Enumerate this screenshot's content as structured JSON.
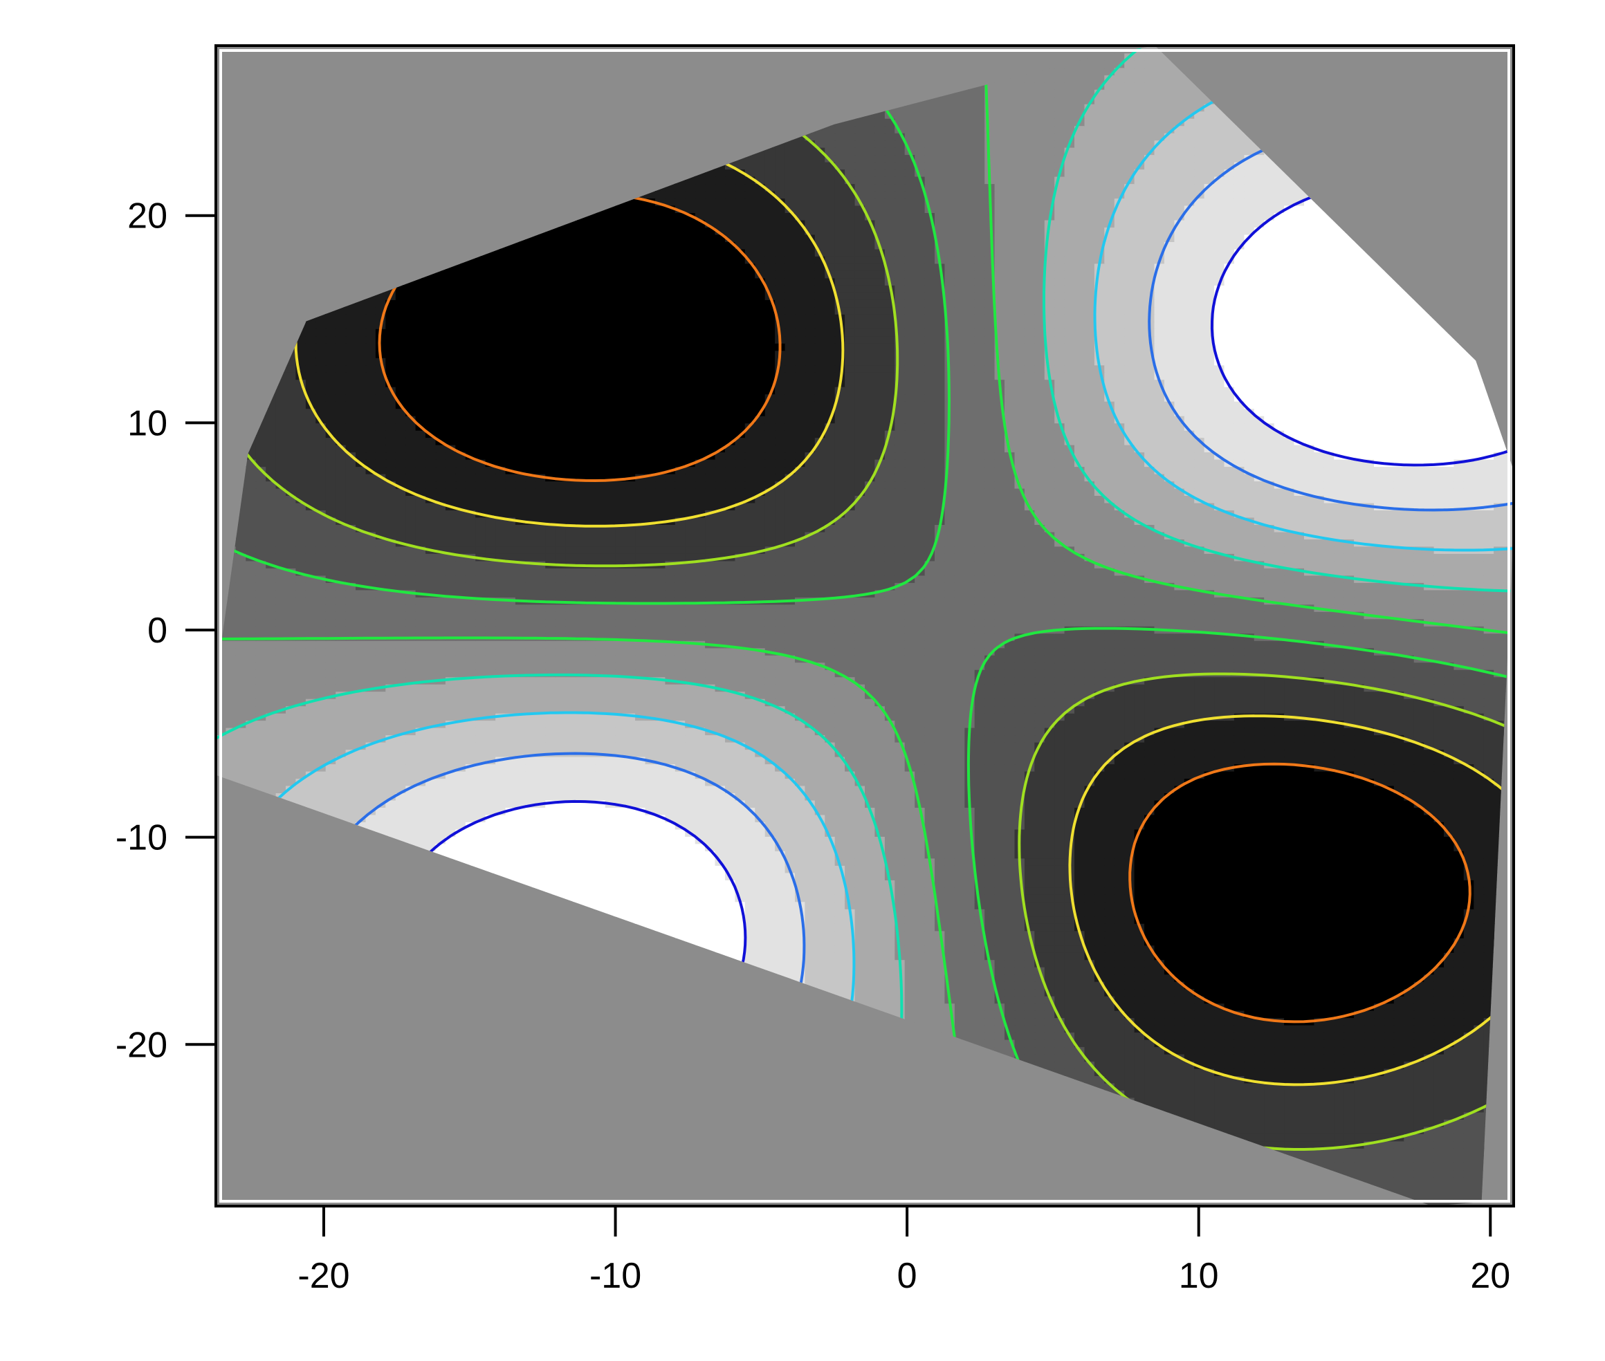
{
  "chart_data": {
    "type": "contour",
    "title": "",
    "xlabel": "",
    "ylabel": "",
    "xlim": [
      -23.7,
      20.8
    ],
    "ylim": [
      -27.8,
      28.2
    ],
    "x_ticks": [
      -20,
      -10,
      0,
      10,
      20
    ],
    "y_ticks": [
      -20,
      -10,
      0,
      10,
      20
    ],
    "x_tick_labels": [
      "-20",
      "-10",
      "0",
      "10",
      "20"
    ],
    "y_tick_labels": [
      "-20",
      "-10",
      "0",
      "10",
      "20"
    ],
    "grid": false,
    "legend": "none",
    "background_color": "#8c8c8c",
    "fill_levels": [
      "#ffffff",
      "#e2e2e2",
      "#c6c6c6",
      "#aaaaaa",
      "#8c8c8c",
      "#6e6e6e",
      "#525252",
      "#373737",
      "#1c1c1c",
      "#000000"
    ],
    "contour_colors": [
      "#1010d8",
      "#2a6ee8",
      "#22c8f0",
      "#10e0b0",
      "#20e840",
      "#a0e020",
      "#f0e030",
      "#f07818"
    ],
    "field": {
      "peaks": [
        {
          "x": -10.5,
          "y": 13.5,
          "sign": 1
        },
        {
          "x": 12.0,
          "y": -12.0,
          "sign": 1
        },
        {
          "x": 16.5,
          "y": 14.0,
          "sign": -1
        },
        {
          "x": -10.0,
          "y": -14.0,
          "sign": -1
        }
      ],
      "domain": [
        [
          -23.7,
          -2.5
        ],
        [
          -22.6,
          8.5
        ],
        [
          -20.6,
          14.9
        ],
        [
          -2.5,
          24.4
        ],
        [
          0.5,
          25.5
        ],
        [
          6.5,
          27.7
        ],
        [
          8.5,
          28.2
        ],
        [
          19.5,
          13.0
        ],
        [
          20.8,
          7.7
        ],
        [
          20.8,
          5.0
        ],
        [
          19.7,
          -27.6
        ],
        [
          18.0,
          -27.8
        ],
        [
          -23.7,
          -7.0
        ]
      ]
    }
  }
}
